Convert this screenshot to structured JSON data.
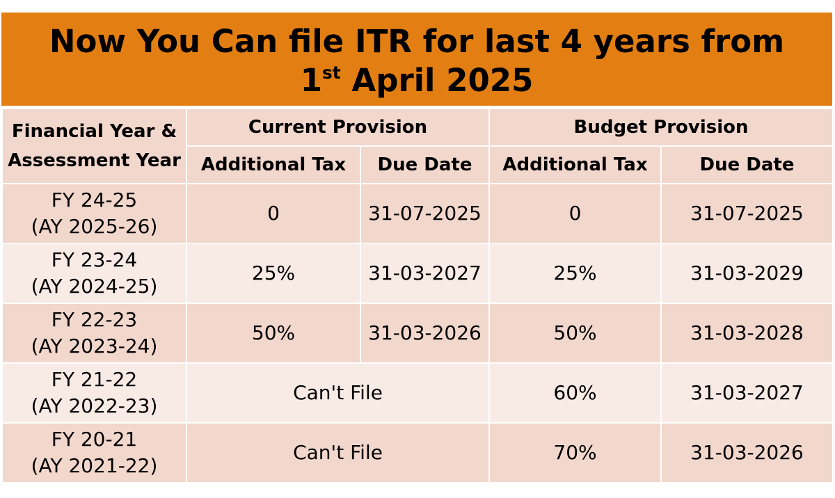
{
  "banner": {
    "line1": "Now You Can file ITR for last 4 years from",
    "line2_day": "1",
    "line2_suffix": "st",
    "line2_rest": " April 2025"
  },
  "table": {
    "fy_header_line1": "Financial Year &",
    "fy_header_line2": "Assessment Year",
    "current_provision": "Current Provision",
    "budget_provision": "Budget Provision",
    "additional_tax": "Additional Tax",
    "due_date": "Due Date",
    "rows": [
      {
        "fy": "FY 24-25",
        "ay": "(AY 2025-26)",
        "cur_tax": "0",
        "cur_due": "31-07-2025",
        "bud_tax": "0",
        "bud_due": "31-07-2025"
      },
      {
        "fy": "FY 23-24",
        "ay": "(AY 2024-25)",
        "cur_tax": "25%",
        "cur_due": "31-03-2027",
        "bud_tax": "25%",
        "bud_due": "31-03-2029"
      },
      {
        "fy": "FY 22-23",
        "ay": "(AY 2023-24)",
        "cur_tax": "50%",
        "cur_due": "31-03-2026",
        "bud_tax": "50%",
        "bud_due": "31-03-2028"
      },
      {
        "fy": "FY 21-22",
        "ay": "(AY 2022-23)",
        "cur_merged": "Can't File",
        "bud_tax": "60%",
        "bud_due": "31-03-2027"
      },
      {
        "fy": "FY 20-21",
        "ay": "(AY 2021-22)",
        "cur_merged": "Can't File",
        "bud_tax": "70%",
        "bud_due": "31-03-2026"
      }
    ]
  },
  "colors": {
    "banner": "#e37f12",
    "row_dark": "#f2d7cd",
    "row_light": "#f8ebe6"
  }
}
